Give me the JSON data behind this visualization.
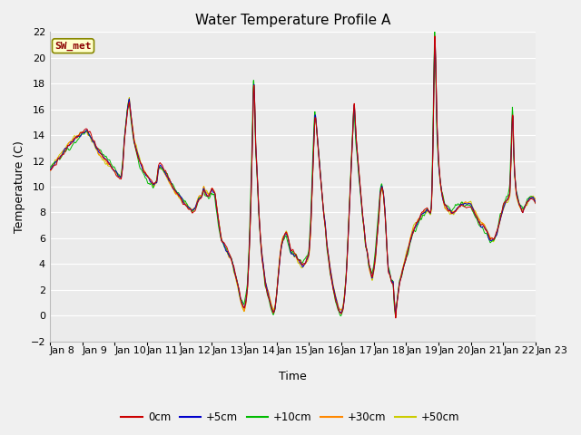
{
  "title": "Water Temperature Profile A",
  "xlabel": "Time",
  "ylabel": "Temperature (C)",
  "ylim": [
    -2,
    22
  ],
  "yticks": [
    -2,
    0,
    2,
    4,
    6,
    8,
    10,
    12,
    14,
    16,
    18,
    20,
    22
  ],
  "date_labels": [
    "Jan 8",
    "Jan 9",
    "Jan 10",
    "Jan 11",
    "Jan 12",
    "Jan 13",
    "Jan 14",
    "Jan 15",
    "Jan 16",
    "Jan 17",
    "Jan 18",
    "Jan 19",
    "Jan 20",
    "Jan 21",
    "Jan 22",
    "Jan 23"
  ],
  "annotation": "SW_met",
  "line_colors": {
    "0cm": "#cc0000",
    "+5cm": "#0000cc",
    "+10cm": "#00bb00",
    "+30cm": "#ff8800",
    "+50cm": "#cccc00"
  },
  "legend_labels": [
    "0cm",
    "+5cm",
    "+10cm",
    "+30cm",
    "+50cm"
  ],
  "bg_color": "#f0f0f0",
  "plot_bg_color": "#f0f0f0",
  "grid_color": "#cccccc",
  "title_fontsize": 11,
  "axis_fontsize": 9,
  "tick_fontsize": 8,
  "control_points": [
    [
      0.0,
      11.2
    ],
    [
      0.2,
      11.8
    ],
    [
      0.4,
      12.5
    ],
    [
      0.6,
      13.2
    ],
    [
      0.8,
      13.8
    ],
    [
      1.0,
      14.3
    ],
    [
      1.15,
      14.5
    ],
    [
      1.3,
      13.8
    ],
    [
      1.5,
      12.8
    ],
    [
      1.7,
      12.2
    ],
    [
      1.9,
      11.5
    ],
    [
      2.1,
      10.8
    ],
    [
      2.2,
      10.5
    ],
    [
      2.25,
      11.5
    ],
    [
      2.3,
      13.5
    ],
    [
      2.4,
      16.0
    ],
    [
      2.45,
      16.7
    ],
    [
      2.5,
      15.5
    ],
    [
      2.6,
      13.5
    ],
    [
      2.7,
      12.5
    ],
    [
      2.8,
      11.8
    ],
    [
      2.9,
      11.2
    ],
    [
      3.0,
      10.8
    ],
    [
      3.1,
      10.5
    ],
    [
      3.2,
      10.2
    ],
    [
      3.3,
      10.5
    ],
    [
      3.35,
      11.5
    ],
    [
      3.4,
      11.8
    ],
    [
      3.5,
      11.5
    ],
    [
      3.6,
      11.0
    ],
    [
      3.7,
      10.5
    ],
    [
      3.8,
      10.0
    ],
    [
      3.9,
      9.5
    ],
    [
      4.0,
      9.3
    ],
    [
      4.1,
      8.8
    ],
    [
      4.2,
      8.5
    ],
    [
      4.3,
      8.2
    ],
    [
      4.4,
      8.0
    ],
    [
      4.5,
      8.3
    ],
    [
      4.6,
      9.0
    ],
    [
      4.7,
      9.2
    ],
    [
      4.75,
      9.8
    ],
    [
      4.8,
      9.5
    ],
    [
      4.9,
      9.2
    ],
    [
      5.0,
      9.8
    ],
    [
      5.1,
      9.5
    ],
    [
      5.15,
      8.5
    ],
    [
      5.2,
      7.5
    ],
    [
      5.3,
      6.0
    ],
    [
      5.4,
      5.5
    ],
    [
      5.5,
      5.0
    ],
    [
      5.6,
      4.5
    ],
    [
      5.7,
      3.5
    ],
    [
      5.8,
      2.5
    ],
    [
      5.85,
      1.8
    ],
    [
      5.9,
      1.2
    ],
    [
      5.95,
      0.8
    ],
    [
      6.0,
      0.5
    ],
    [
      6.05,
      1.0
    ],
    [
      6.1,
      2.0
    ],
    [
      6.15,
      4.5
    ],
    [
      6.2,
      8.0
    ],
    [
      6.25,
      13.0
    ],
    [
      6.28,
      17.0
    ],
    [
      6.3,
      18.0
    ],
    [
      6.33,
      16.0
    ],
    [
      6.35,
      13.5
    ],
    [
      6.4,
      11.0
    ],
    [
      6.45,
      8.0
    ],
    [
      6.5,
      6.0
    ],
    [
      6.55,
      4.5
    ],
    [
      6.6,
      3.5
    ],
    [
      6.65,
      2.5
    ],
    [
      6.7,
      2.0
    ],
    [
      6.75,
      1.5
    ],
    [
      6.8,
      1.0
    ],
    [
      6.85,
      0.5
    ],
    [
      6.9,
      0.2
    ],
    [
      6.95,
      0.5
    ],
    [
      7.0,
      1.5
    ],
    [
      7.05,
      3.0
    ],
    [
      7.1,
      4.5
    ],
    [
      7.15,
      5.5
    ],
    [
      7.2,
      6.0
    ],
    [
      7.25,
      6.3
    ],
    [
      7.3,
      6.5
    ],
    [
      7.35,
      6.2
    ],
    [
      7.4,
      5.5
    ],
    [
      7.45,
      5.0
    ],
    [
      7.5,
      5.0
    ],
    [
      7.55,
      4.8
    ],
    [
      7.6,
      4.8
    ],
    [
      7.65,
      4.5
    ],
    [
      7.7,
      4.3
    ],
    [
      7.8,
      4.0
    ],
    [
      7.9,
      4.2
    ],
    [
      8.0,
      4.8
    ],
    [
      8.05,
      6.5
    ],
    [
      8.1,
      10.0
    ],
    [
      8.15,
      13.5
    ],
    [
      8.18,
      15.5
    ],
    [
      8.2,
      15.5
    ],
    [
      8.22,
      15.0
    ],
    [
      8.25,
      14.0
    ],
    [
      8.3,
      12.5
    ],
    [
      8.35,
      11.0
    ],
    [
      8.4,
      9.5
    ],
    [
      8.45,
      8.0
    ],
    [
      8.5,
      7.0
    ],
    [
      8.55,
      5.5
    ],
    [
      8.6,
      4.5
    ],
    [
      8.65,
      3.5
    ],
    [
      8.7,
      2.8
    ],
    [
      8.75,
      2.0
    ],
    [
      8.8,
      1.5
    ],
    [
      8.85,
      1.0
    ],
    [
      8.9,
      0.5
    ],
    [
      8.95,
      0.3
    ],
    [
      9.0,
      0.2
    ],
    [
      9.05,
      0.5
    ],
    [
      9.1,
      1.5
    ],
    [
      9.15,
      3.0
    ],
    [
      9.2,
      5.5
    ],
    [
      9.25,
      8.5
    ],
    [
      9.3,
      11.5
    ],
    [
      9.35,
      14.0
    ],
    [
      9.38,
      16.0
    ],
    [
      9.4,
      16.5
    ],
    [
      9.42,
      15.5
    ],
    [
      9.45,
      14.0
    ],
    [
      9.5,
      12.5
    ],
    [
      9.55,
      11.0
    ],
    [
      9.6,
      9.5
    ],
    [
      9.65,
      8.0
    ],
    [
      9.7,
      7.0
    ],
    [
      9.75,
      5.5
    ],
    [
      9.8,
      5.0
    ],
    [
      9.85,
      4.0
    ],
    [
      9.9,
      3.5
    ],
    [
      9.95,
      3.0
    ],
    [
      10.0,
      3.5
    ],
    [
      10.05,
      4.5
    ],
    [
      10.1,
      6.0
    ],
    [
      10.15,
      7.5
    ],
    [
      10.2,
      9.5
    ],
    [
      10.25,
      10.0
    ],
    [
      10.3,
      9.5
    ],
    [
      10.35,
      8.0
    ],
    [
      10.38,
      6.5
    ],
    [
      10.4,
      5.5
    ],
    [
      10.42,
      4.5
    ],
    [
      10.45,
      3.5
    ],
    [
      10.5,
      3.0
    ],
    [
      10.55,
      2.5
    ],
    [
      10.6,
      2.5
    ],
    [
      10.62,
      1.5
    ],
    [
      10.65,
      0.5
    ],
    [
      10.68,
      -0.3
    ],
    [
      10.7,
      0.5
    ],
    [
      10.75,
      1.5
    ],
    [
      10.8,
      2.5
    ],
    [
      10.85,
      3.0
    ],
    [
      10.9,
      3.5
    ],
    [
      10.95,
      4.0
    ],
    [
      11.0,
      4.5
    ],
    [
      11.1,
      5.5
    ],
    [
      11.2,
      6.5
    ],
    [
      11.3,
      7.0
    ],
    [
      11.4,
      7.5
    ],
    [
      11.5,
      8.0
    ],
    [
      11.6,
      8.2
    ],
    [
      11.65,
      8.3
    ],
    [
      11.7,
      8.2
    ],
    [
      11.75,
      8.0
    ],
    [
      11.78,
      8.5
    ],
    [
      11.8,
      10.0
    ],
    [
      11.83,
      13.5
    ],
    [
      11.85,
      17.0
    ],
    [
      11.87,
      19.5
    ],
    [
      11.88,
      22.0
    ],
    [
      11.9,
      21.0
    ],
    [
      11.92,
      19.0
    ],
    [
      11.95,
      15.0
    ],
    [
      12.0,
      12.0
    ],
    [
      12.05,
      10.5
    ],
    [
      12.1,
      9.5
    ],
    [
      12.15,
      9.0
    ],
    [
      12.2,
      8.5
    ],
    [
      12.3,
      8.2
    ],
    [
      12.4,
      8.0
    ],
    [
      12.5,
      8.0
    ],
    [
      12.6,
      8.2
    ],
    [
      12.7,
      8.5
    ],
    [
      12.8,
      8.5
    ],
    [
      12.9,
      8.5
    ],
    [
      13.0,
      8.5
    ],
    [
      13.1,
      8.0
    ],
    [
      13.2,
      7.5
    ],
    [
      13.3,
      7.0
    ],
    [
      13.4,
      7.0
    ],
    [
      13.5,
      6.5
    ],
    [
      13.6,
      6.0
    ],
    [
      13.7,
      6.0
    ],
    [
      13.8,
      6.5
    ],
    [
      13.9,
      7.5
    ],
    [
      14.0,
      8.5
    ],
    [
      14.1,
      9.0
    ],
    [
      14.15,
      9.2
    ],
    [
      14.2,
      9.5
    ],
    [
      14.25,
      13.0
    ],
    [
      14.28,
      15.5
    ],
    [
      14.3,
      15.5
    ],
    [
      14.32,
      13.0
    ],
    [
      14.35,
      11.0
    ],
    [
      14.4,
      9.5
    ],
    [
      14.5,
      8.5
    ],
    [
      14.6,
      8.0
    ],
    [
      14.7,
      8.5
    ],
    [
      14.8,
      9.0
    ],
    [
      14.9,
      9.0
    ],
    [
      15.0,
      8.8
    ]
  ]
}
